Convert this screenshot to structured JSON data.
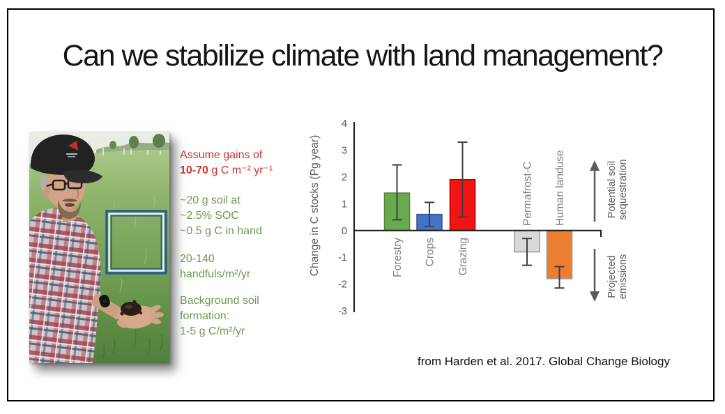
{
  "slide": {
    "title": "Can we stabilize climate with land management?",
    "citation": "from Harden et al. 2017. Global Change Biology"
  },
  "notes": {
    "red_color": "#c8332e",
    "green_color": "#6b9a52",
    "assumption_line1": "Assume gains of",
    "assumption_bold": "10-70",
    "assumption_rest": " g C m⁻² yr⁻¹",
    "handful_lines": [
      "~20 g soil at",
      "~2.5% SOC",
      "~0.5 g C in hand"
    ],
    "rate_lines": [
      "20-140",
      "handfuls/m²/yr"
    ],
    "background_lines": [
      "Background soil",
      "formation:",
      "1-5 g C/m²/yr"
    ]
  },
  "chart_data": {
    "type": "bar",
    "title": "",
    "xlabel": "",
    "ylabel": "Change in C stocks (Pg year)",
    "ylim": [
      -3,
      4
    ],
    "yticks": [
      4,
      3,
      2,
      1,
      0,
      -1,
      -2,
      -3
    ],
    "grid": false,
    "legend": "none",
    "categories": [
      "Forestry",
      "Crops",
      "Grazing",
      "Permafrost-C",
      "Human landuse"
    ],
    "values": [
      1.4,
      0.6,
      1.9,
      -0.8,
      -1.8
    ],
    "error_bars": [
      [
        0.4,
        2.45
      ],
      [
        0.15,
        1.05
      ],
      [
        0.5,
        3.3
      ],
      [
        -1.3,
        -0.3
      ],
      [
        -2.15,
        -1.35
      ]
    ],
    "bar_colors": [
      "#6aaa4e",
      "#4472c4",
      "#f11414",
      "#d9d9d9",
      "#ed7d31"
    ],
    "bar_edge_colors": [
      "#538639",
      "#35589b",
      "#c00000",
      "#9b9b9b",
      "#9b9b9b"
    ],
    "error_color": "#3f3f3f",
    "axis_color": "#1a1a1a",
    "tick_label_color": "#595959",
    "category_label_color": "#7f7f7f",
    "annotation_color": "#595959",
    "right_annotations": {
      "up_label_lines": [
        "Potential soil",
        "sequestration"
      ],
      "down_label_lines": [
        "Projected",
        "emissions"
      ]
    }
  }
}
